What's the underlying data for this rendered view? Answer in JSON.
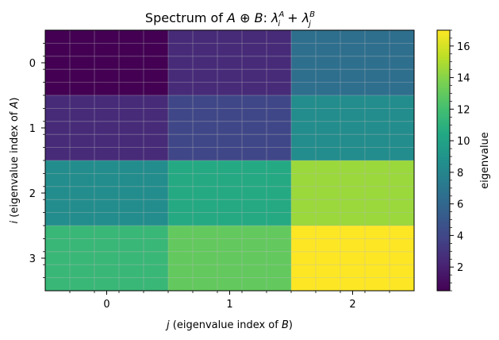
{
  "chart_data": {
    "type": "heatmap",
    "title": "Spectrum of A ⊕ B: λᵢᴬ + λⱼᴮ",
    "xlabel": "j (eigenvalue index of B)",
    "ylabel": "i (eigenvalue index of A)",
    "x_categories": [
      "0",
      "1",
      "2"
    ],
    "y_categories": [
      "0",
      "1",
      "2",
      "3"
    ],
    "values": [
      [
        0.5,
        2.5,
        6.5
      ],
      [
        2.5,
        4.0,
        8.5
      ],
      [
        8.5,
        10.5,
        14.5
      ],
      [
        11.5,
        13.0,
        17.0
      ]
    ],
    "colorbar": {
      "label": "eigenvalue",
      "vmin": 0.5,
      "vmax": 17.0,
      "ticks": [
        2,
        4,
        6,
        8,
        10,
        12,
        14,
        16
      ],
      "colormap": "viridis"
    },
    "grid": true
  }
}
